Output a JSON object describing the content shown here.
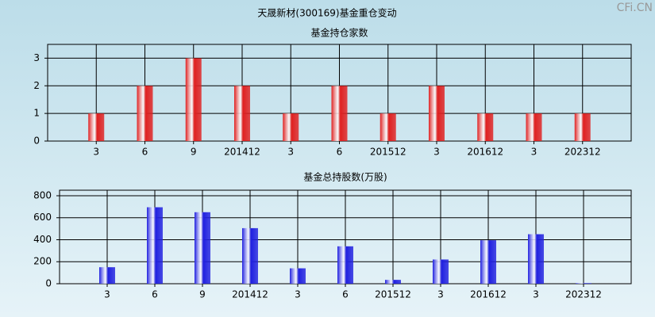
{
  "title": "天晟新材(300169)基金重仓变动",
  "watermark": "CFi.CN",
  "chart_data": [
    {
      "type": "bar",
      "title": "基金持仓家数",
      "categories": [
        "3",
        "6",
        "9",
        "201412",
        "3",
        "6",
        "201512",
        "3",
        "201612",
        "3",
        "202312"
      ],
      "values": [
        1,
        2,
        3,
        2,
        1,
        2,
        1,
        2,
        1,
        1,
        1
      ],
      "color": "#e02020",
      "ylim": [
        0,
        3.5
      ],
      "yticks": [
        0,
        1,
        2,
        3
      ],
      "grid": true
    },
    {
      "type": "bar",
      "title": "基金总持股数(万股)",
      "categories": [
        "3",
        "6",
        "9",
        "201412",
        "3",
        "6",
        "201512",
        "3",
        "201612",
        "3",
        "202312"
      ],
      "values": [
        150,
        695,
        650,
        505,
        140,
        340,
        35,
        220,
        395,
        450,
        5
      ],
      "color": "#2020e0",
      "ylim": [
        0,
        850
      ],
      "yticks": [
        0,
        200,
        400,
        600,
        800
      ],
      "grid": true
    }
  ]
}
